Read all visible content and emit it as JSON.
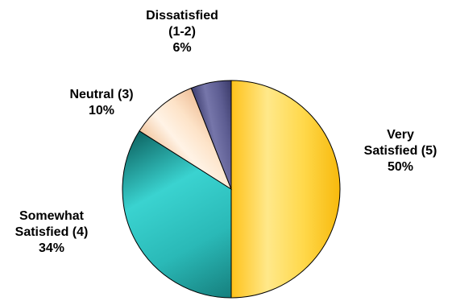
{
  "chart_data": {
    "type": "pie",
    "start_angle_deg": 0,
    "direction": "clockwise",
    "categories": [
      "Very Satisfied (5)",
      "Somewhat Satisfied (4)",
      "Neutral (3)",
      "Dissatisfied (1-2)"
    ],
    "values": [
      50,
      34,
      10,
      6
    ],
    "value_labels": [
      "50%",
      "34%",
      "10%",
      "6%"
    ],
    "slices": [
      {
        "label_lines": [
          "Very",
          "Satisfied (5)"
        ],
        "value": 50,
        "value_label": "50%",
        "color": "#ffd84a",
        "gradient": [
          "#ffc21a",
          "#ffe88a",
          "#ffd84a",
          "#f7b90c"
        ]
      },
      {
        "label_lines": [
          "Somewhat",
          "Satisfied (4)"
        ],
        "value": 34,
        "value_label": "34%",
        "color": "#2fc8c6",
        "gradient": [
          "#167f7d",
          "#2ab9b7",
          "#3ad3d0",
          "#0e6664"
        ]
      },
      {
        "label_lines": [
          "Neutral (3)"
        ],
        "value": 10,
        "value_label": "10%",
        "color": "#fde3c8",
        "gradient": [
          "#f3c7a0",
          "#fff3e6",
          "#fde3c8",
          "#efc09a"
        ]
      },
      {
        "label_lines": [
          "Dissatisfied",
          "(1-2)"
        ],
        "value": 6,
        "value_label": "6%",
        "color": "#5d5d92",
        "gradient": [
          "#3e3e70",
          "#7676aa",
          "#5d5d92",
          "#3a3a68"
        ]
      }
    ],
    "title": "",
    "legend": "none",
    "edge_color": "#000000"
  }
}
